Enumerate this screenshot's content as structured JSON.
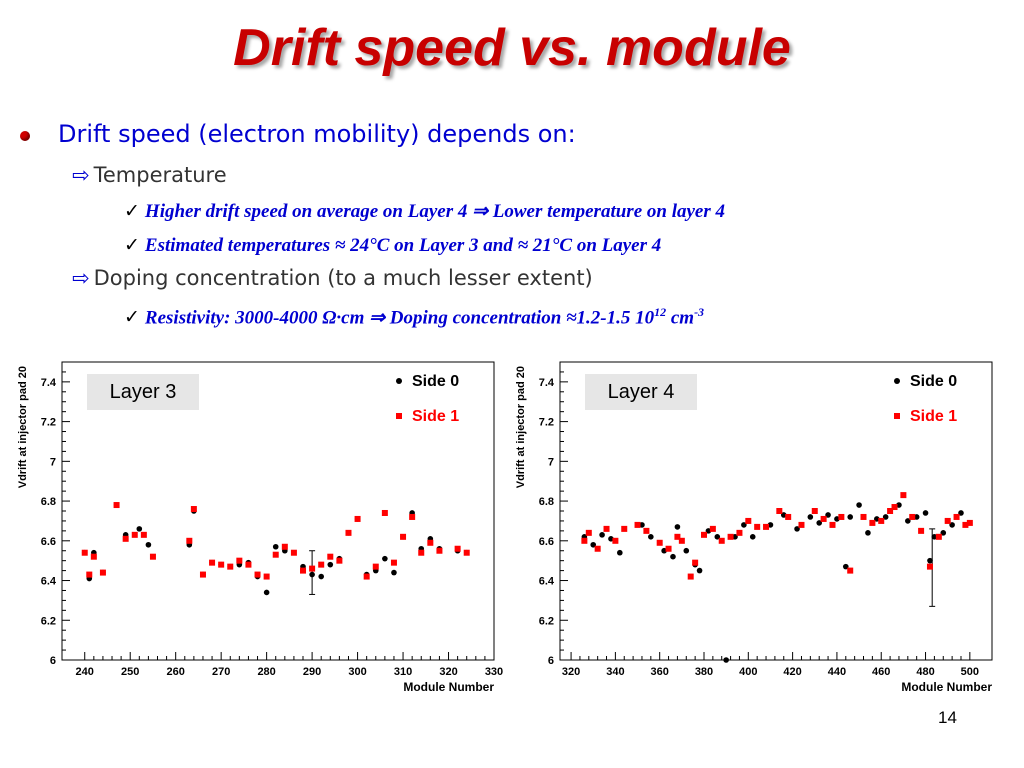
{
  "slide": {
    "title": "Drift speed vs. module",
    "bullet_main": "Drift speed (electron mobility) depends on:",
    "sub1": {
      "label": "Temperature",
      "items": [
        "Higher drift speed  on average on Layer 4 ⇒ Lower temperature on layer 4",
        "Estimated temperatures ≈ 24°C on Layer 3 and ≈ 21°C  on Layer 4"
      ]
    },
    "sub2": {
      "label": "Doping concentration (to a much lesser extent)",
      "item_prefix": "Resistivity: 3000-4000 Ω·cm ⇒ Doping concentration ≈1.2-1.5 10",
      "item_exp1": "12",
      "item_mid": " cm",
      "item_exp2": "-3"
    },
    "page_number": "14"
  },
  "colors": {
    "title": "#c80000",
    "bullet_text": "#0000d0",
    "side0": "#000000",
    "side1": "#ff0000"
  },
  "icons": {
    "bullet": "red-dot-icon",
    "sub_bullet": "arrow-right-icon",
    "item_bullet": "check-icon"
  },
  "chart_data": [
    {
      "type": "scatter",
      "label_box": "Layer 3",
      "xlabel": "Module Number",
      "ylabel": "Vdrift at injector pad 20",
      "xlim": [
        235,
        330
      ],
      "ylim": [
        6,
        7.5
      ],
      "xticks": [
        240,
        250,
        260,
        270,
        280,
        290,
        300,
        310,
        320,
        330
      ],
      "yticks": [
        6,
        6.2,
        6.4,
        6.6,
        6.8,
        7,
        7.2,
        7.4
      ],
      "ytick_labels": [
        "6",
        "6.2",
        "6.4",
        "6.6",
        "6.8",
        "7",
        "7.2",
        "7.4"
      ],
      "legend": [
        {
          "name": "Side 0",
          "marker": "circle"
        },
        {
          "name": "Side 1",
          "marker": "square"
        }
      ],
      "legend_position": "top-right",
      "series": [
        {
          "name": "Side 0",
          "x": [
            240,
            241,
            242,
            244,
            247,
            249,
            252,
            254,
            263,
            264,
            266,
            268,
            270,
            272,
            274,
            276,
            278,
            280,
            282,
            284,
            288,
            290,
            292,
            294,
            296,
            298,
            300,
            302,
            304,
            306,
            308,
            310,
            312,
            314,
            316,
            318,
            322,
            324
          ],
          "y": [
            6.54,
            6.41,
            6.54,
            6.44,
            6.78,
            6.63,
            6.66,
            6.58,
            6.58,
            6.75,
            6.43,
            6.49,
            6.48,
            6.47,
            6.48,
            6.49,
            6.42,
            6.34,
            6.57,
            6.55,
            6.47,
            6.43,
            6.42,
            6.48,
            6.51,
            6.64,
            6.71,
            6.43,
            6.45,
            6.51,
            6.44,
            6.62,
            6.74,
            6.56,
            6.61,
            6.56,
            6.55,
            6.54
          ]
        },
        {
          "name": "Side 1",
          "x": [
            240,
            241,
            242,
            244,
            247,
            249,
            251,
            253,
            255,
            263,
            264,
            266,
            268,
            270,
            272,
            274,
            276,
            278,
            280,
            282,
            284,
            286,
            288,
            290,
            292,
            294,
            296,
            298,
            300,
            302,
            304,
            306,
            308,
            310,
            312,
            314,
            316,
            318,
            322,
            324
          ],
          "y": [
            6.54,
            6.43,
            6.52,
            6.44,
            6.78,
            6.61,
            6.63,
            6.63,
            6.52,
            6.6,
            6.76,
            6.43,
            6.49,
            6.48,
            6.47,
            6.5,
            6.48,
            6.43,
            6.42,
            6.53,
            6.57,
            6.54,
            6.45,
            6.46,
            6.48,
            6.52,
            6.5,
            6.64,
            6.71,
            6.42,
            6.47,
            6.74,
            6.49,
            6.62,
            6.72,
            6.54,
            6.59,
            6.55,
            6.56,
            6.54
          ]
        }
      ],
      "error_bar": {
        "x": 290,
        "y": 6.43,
        "low": 6.33,
        "high": 6.55
      }
    },
    {
      "type": "scatter",
      "label_box": "Layer 4",
      "xlabel": "Module Number",
      "ylabel": "Vdrift at injector pad 20",
      "xlim": [
        315,
        510
      ],
      "ylim": [
        6,
        7.5
      ],
      "xticks": [
        320,
        340,
        360,
        380,
        400,
        420,
        440,
        460,
        480,
        500
      ],
      "yticks": [
        6,
        6.2,
        6.4,
        6.6,
        6.8,
        7,
        7.2,
        7.4
      ],
      "ytick_labels": [
        "6",
        "6.2",
        "6.4",
        "6.6",
        "6.8",
        "7",
        "7.2",
        "7.4"
      ],
      "legend": [
        {
          "name": "Side 0",
          "marker": "circle"
        },
        {
          "name": "Side 1",
          "marker": "square"
        }
      ],
      "legend_position": "top-right",
      "series": [
        {
          "name": "Side 0",
          "x": [
            326,
            330,
            334,
            338,
            342,
            352,
            356,
            362,
            366,
            368,
            372,
            376,
            378,
            382,
            386,
            390,
            394,
            398,
            402,
            410,
            416,
            422,
            428,
            432,
            436,
            440,
            444,
            446,
            450,
            454,
            458,
            462,
            468,
            472,
            476,
            480,
            482,
            484,
            488,
            492,
            496
          ],
          "y": [
            6.62,
            6.58,
            6.63,
            6.61,
            6.54,
            6.68,
            6.62,
            6.55,
            6.52,
            6.67,
            6.55,
            6.48,
            6.45,
            6.65,
            6.62,
            6.0,
            6.62,
            6.68,
            6.62,
            6.68,
            6.73,
            6.66,
            6.72,
            6.69,
            6.73,
            6.71,
            6.47,
            6.72,
            6.78,
            6.64,
            6.71,
            6.72,
            6.78,
            6.7,
            6.72,
            6.74,
            6.5,
            6.62,
            6.64,
            6.68,
            6.74
          ]
        },
        {
          "name": "Side 1",
          "x": [
            326,
            328,
            332,
            336,
            340,
            344,
            350,
            354,
            360,
            364,
            368,
            370,
            374,
            376,
            380,
            384,
            388,
            392,
            396,
            400,
            404,
            408,
            414,
            418,
            424,
            430,
            434,
            438,
            442,
            446,
            452,
            456,
            460,
            464,
            466,
            470,
            474,
            478,
            482,
            486,
            490,
            494,
            498,
            500
          ],
          "y": [
            6.6,
            6.64,
            6.56,
            6.66,
            6.6,
            6.66,
            6.68,
            6.65,
            6.59,
            6.56,
            6.62,
            6.6,
            6.42,
            6.49,
            6.63,
            6.66,
            6.6,
            6.62,
            6.64,
            6.7,
            6.67,
            6.67,
            6.75,
            6.72,
            6.68,
            6.75,
            6.71,
            6.68,
            6.72,
            6.45,
            6.72,
            6.69,
            6.7,
            6.75,
            6.77,
            6.83,
            6.72,
            6.65,
            6.47,
            6.62,
            6.7,
            6.72,
            6.68,
            6.69
          ]
        }
      ],
      "error_bar": {
        "x": 483,
        "y": 6.5,
        "low": 6.27,
        "high": 6.66
      }
    }
  ]
}
